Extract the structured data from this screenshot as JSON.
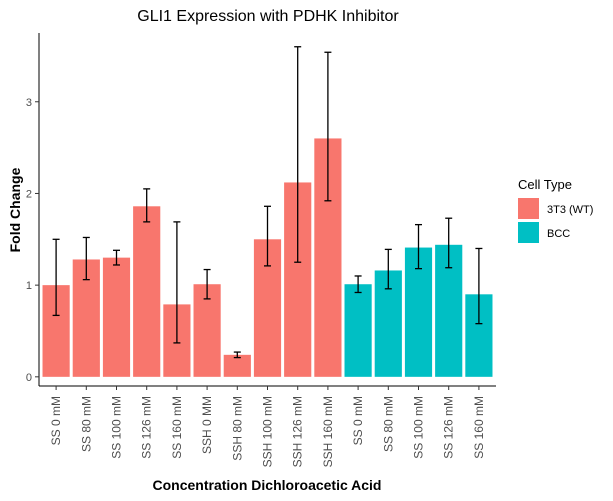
{
  "chart_data": {
    "type": "bar",
    "title": "GLI1 Expression with PDHK Inhibitor",
    "xlabel": "Concentration Dichloroacetic Acid",
    "ylabel": "Fold Change",
    "ylim": [
      -0.1,
      3.75
    ],
    "yticks": [
      0,
      1,
      2,
      3
    ],
    "grid": false,
    "legend_position": "right",
    "legend_title": "Cell Type",
    "series": [
      {
        "name": "3T3 (WT)",
        "color": "#F8766D"
      },
      {
        "name": "BCC",
        "color": "#00BFC4"
      }
    ],
    "categories": [
      "SS 0 mM",
      "SS 80 mM",
      "SS 100 mM",
      "SS 126 mM",
      "SS 160 mM",
      "SSH 0 MM",
      "SSH 80 mM",
      "SSH 100 mM",
      "SSH 126 mM",
      "SSH 160 mM",
      "SS 0 mM",
      "SS 80 mM",
      "SS 100 mM",
      "SS 126 mM",
      "SS 160 mM"
    ],
    "groups": [
      0,
      0,
      0,
      0,
      0,
      0,
      0,
      0,
      0,
      0,
      1,
      1,
      1,
      1,
      1
    ],
    "values": [
      1.0,
      1.28,
      1.3,
      1.86,
      0.79,
      1.01,
      0.24,
      1.5,
      2.12,
      2.6,
      1.01,
      1.16,
      1.41,
      1.44,
      0.9
    ],
    "err_low": [
      0.67,
      1.06,
      1.22,
      1.69,
      0.37,
      0.85,
      0.21,
      1.21,
      1.25,
      1.92,
      0.92,
      0.96,
      1.18,
      1.19,
      0.58
    ],
    "err_high": [
      1.5,
      1.52,
      1.38,
      2.05,
      1.69,
      1.17,
      0.27,
      1.86,
      3.6,
      3.54,
      1.1,
      1.39,
      1.66,
      1.73,
      1.4
    ]
  }
}
